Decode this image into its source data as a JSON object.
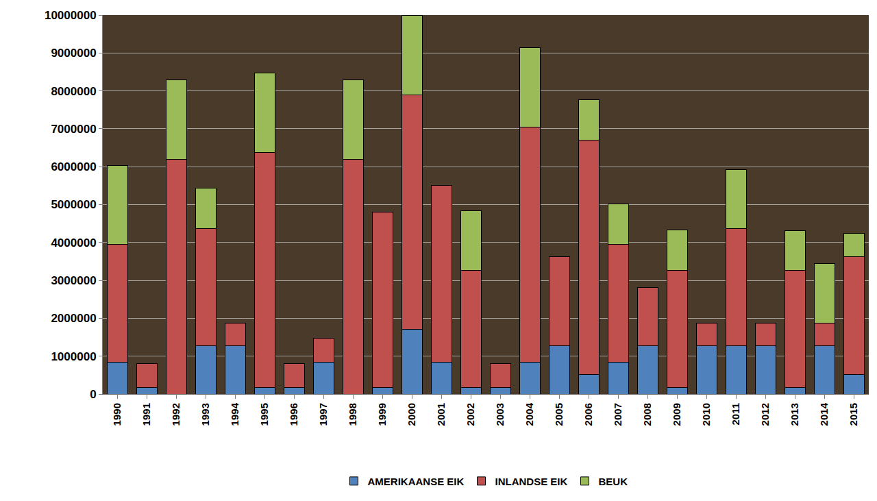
{
  "chart_data": {
    "type": "bar",
    "stacked": true,
    "grid": true,
    "legend": "bottom",
    "categories": [
      "1990",
      "1991",
      "1992",
      "1993",
      "1994",
      "1995",
      "1996",
      "1997",
      "1998",
      "1999",
      "2000",
      "2001",
      "2002",
      "2003",
      "2004",
      "2005",
      "2006",
      "2007",
      "2008",
      "2009",
      "2010",
      "2011",
      "2012",
      "2013",
      "2014",
      "2015"
    ],
    "series": [
      {
        "name": "AMERIKAANSE EIK",
        "color": "#4f81bd",
        "values": [
          850000,
          170000,
          0,
          1270000,
          1270000,
          170000,
          170000,
          850000,
          0,
          170000,
          1700000,
          850000,
          170000,
          170000,
          850000,
          1270000,
          510000,
          850000,
          1270000,
          170000,
          1270000,
          1270000,
          1270000,
          170000,
          1270000,
          510000
        ]
      },
      {
        "name": "INLANDSE EIK",
        "color": "#c0504d",
        "values": [
          3100000,
          630000,
          6200000,
          3100000,
          610000,
          6200000,
          630000,
          620000,
          6200000,
          4630000,
          6200000,
          4650000,
          3100000,
          630000,
          6200000,
          2350000,
          6190000,
          3100000,
          1550000,
          3100000,
          610000,
          3100000,
          610000,
          3100000,
          610000,
          3110000
        ]
      },
      {
        "name": "BEUK",
        "color": "#9bbb59",
        "values": [
          2080000,
          0,
          2100000,
          1060000,
          0,
          2110000,
          0,
          0,
          2100000,
          0,
          2100000,
          0,
          1560000,
          0,
          2100000,
          0,
          1070000,
          1060000,
          0,
          1060000,
          0,
          1560000,
          0,
          1040000,
          1570000,
          620000
        ]
      }
    ],
    "ylim": [
      0,
      10000000
    ],
    "yticks": [
      0,
      1000000,
      2000000,
      3000000,
      4000000,
      5000000,
      6000000,
      7000000,
      8000000,
      9000000,
      10000000
    ]
  }
}
